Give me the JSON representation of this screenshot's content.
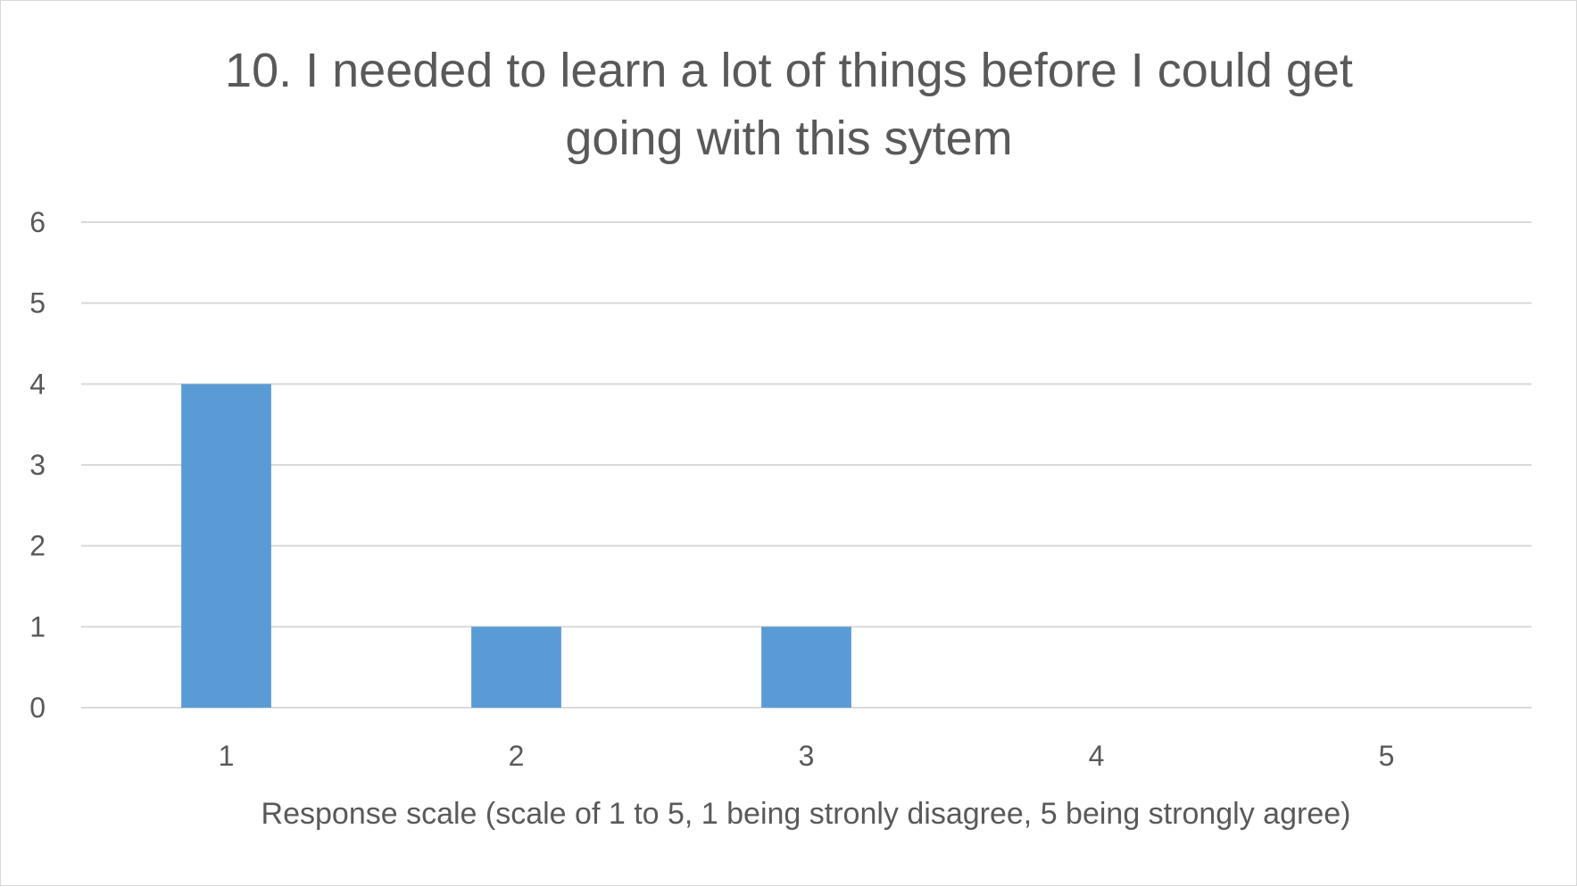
{
  "chart_data": {
    "type": "bar",
    "title_lines": [
      "10. I needed to learn a lot of things before I could get",
      "going with this sytem"
    ],
    "xlabel": "Response scale (scale of 1 to 5, 1 being stronly disagree, 5 being strongly agree)",
    "ylabel": "",
    "categories": [
      "1",
      "2",
      "3",
      "4",
      "5"
    ],
    "values": [
      4,
      1,
      1,
      0,
      0
    ],
    "ylim": [
      0,
      6
    ],
    "yticks": [
      "0",
      "1",
      "2",
      "3",
      "4",
      "5",
      "6"
    ],
    "grid": true,
    "legend": "none",
    "bar_color": "#5b9bd5"
  }
}
